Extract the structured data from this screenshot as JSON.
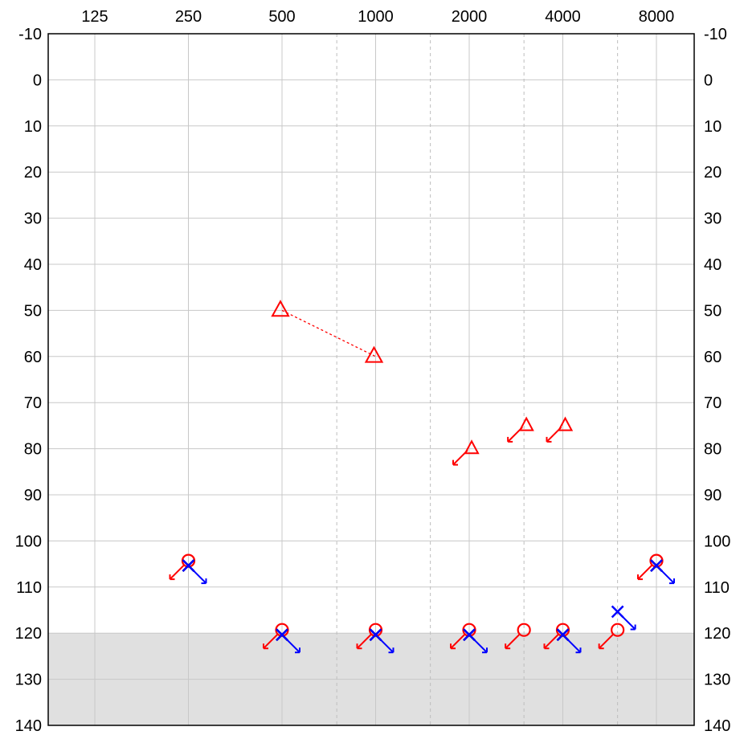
{
  "chart_data": {
    "type": "scatter",
    "title": "",
    "xlabel": "",
    "ylabel": "",
    "x_scale": "log2 (octave)",
    "x_ticks": [
      "125",
      "250",
      "500",
      "1000",
      "2000",
      "4000",
      "8000"
    ],
    "x_interoctave": [
      750,
      1500,
      3000,
      6000
    ],
    "y_ticks": [
      "-10",
      "0",
      "10",
      "20",
      "30",
      "40",
      "50",
      "60",
      "70",
      "80",
      "90",
      "100",
      "110",
      "120",
      "130",
      "140"
    ],
    "ylim": [
      -10,
      140
    ],
    "y_inverted": true,
    "grid": true,
    "shaded_region": {
      "from": 120,
      "to": 140,
      "color": "#e0e0e0"
    },
    "colors": {
      "right": "#ff0000",
      "left": "#0000ff",
      "black": "#000000",
      "grid_solid": "#c8c8c8",
      "grid_dashed": "#bdbdbd",
      "shade": "#e0e0e0"
    },
    "series": [
      {
        "symbol": "triangle",
        "color": "#ff0000",
        "no_response": false,
        "points": [
          {
            "x": 500,
            "y": 50
          },
          {
            "x": 1000,
            "y": 60
          }
        ]
      },
      {
        "symbol": "triangle",
        "color": "#ff0000",
        "no_response": true,
        "size": "small",
        "points": [
          {
            "x": 2000,
            "y": 80
          },
          {
            "x": 3000,
            "y": 75
          },
          {
            "x": 4000,
            "y": 75
          }
        ]
      },
      {
        "symbol": "circle",
        "color": "#ff0000",
        "no_response": true,
        "points": [
          {
            "x": 250,
            "y": 105
          },
          {
            "x": 500,
            "y": 120
          },
          {
            "x": 1000,
            "y": 120
          },
          {
            "x": 2000,
            "y": 120
          },
          {
            "x": 3000,
            "y": 120
          },
          {
            "x": 4000,
            "y": 120
          },
          {
            "x": 6000,
            "y": 120
          },
          {
            "x": 8000,
            "y": 105
          }
        ]
      },
      {
        "symbol": "x",
        "color": "#000000",
        "no_response": false,
        "points": [
          {
            "x": 250,
            "y": 105
          },
          {
            "x": 500,
            "y": 120
          },
          {
            "x": 1000,
            "y": 120
          },
          {
            "x": 2000,
            "y": 120
          },
          {
            "x": 4000,
            "y": 120
          },
          {
            "x": 8000,
            "y": 105
          }
        ]
      },
      {
        "symbol": "x",
        "color": "#0000ff",
        "no_response": true,
        "points": [
          {
            "x": 250,
            "y": 105
          },
          {
            "x": 500,
            "y": 120
          },
          {
            "x": 1000,
            "y": 120
          },
          {
            "x": 2000,
            "y": 120
          },
          {
            "x": 4000,
            "y": 120
          },
          {
            "x": 6000,
            "y": 115
          },
          {
            "x": 8000,
            "y": 105
          }
        ]
      }
    ],
    "connections": [
      {
        "from": {
          "x": 500,
          "y": 50
        },
        "to": {
          "x": 1000,
          "y": 60
        },
        "color": "#ff0000",
        "style": "dashed"
      }
    ]
  }
}
